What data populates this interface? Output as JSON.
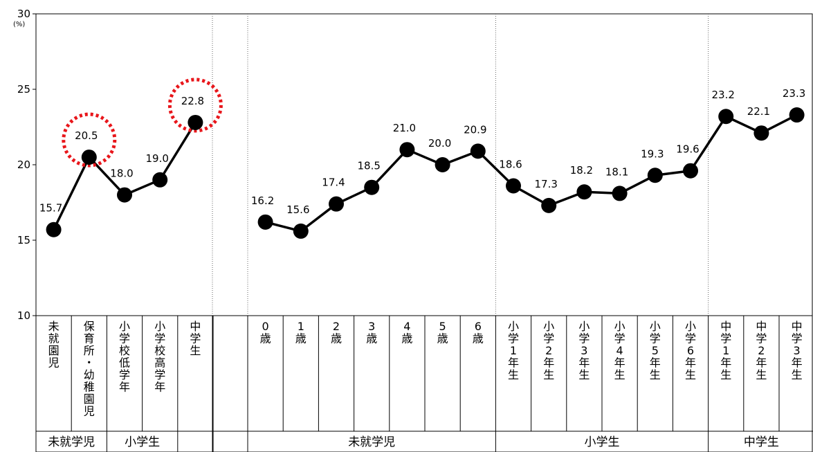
{
  "chart_data": {
    "type": "line",
    "y_unit": "(%)",
    "ylim": [
      10,
      30
    ],
    "yticks": [
      "10",
      "15",
      "20",
      "25",
      "30"
    ],
    "grid": false,
    "panels": [
      {
        "categories": [
          "未就園児",
          "保育所・幼稚園児",
          "小学校低学年",
          "小学校高学年",
          "中学生",
          ""
        ],
        "values": [
          15.7,
          20.5,
          18.0,
          19.0,
          22.8,
          null
        ],
        "labels": [
          "15.7",
          "20.5",
          "18.0",
          "19.0",
          "22.8",
          ""
        ],
        "highlighted": [
          1,
          4
        ],
        "groups": [
          {
            "label": "未就学児",
            "span": 2
          },
          {
            "label": "小学生",
            "span": 2
          },
          {
            "label": "",
            "span": 1
          },
          {
            "label": "",
            "span": 1
          }
        ]
      },
      {
        "categories": [
          "0歳",
          "1歳",
          "2歳",
          "3歳",
          "4歳",
          "5歳",
          "6歳",
          "小学1年生",
          "小学2年生",
          "小学3年生",
          "小学4年生",
          "小学5年生",
          "小学6年生",
          "中学1年生",
          "中学2年生",
          "中学3年生"
        ],
        "values": [
          16.2,
          15.6,
          17.4,
          18.5,
          21.0,
          20.0,
          20.9,
          18.6,
          17.3,
          18.2,
          18.1,
          19.3,
          19.6,
          23.2,
          22.1,
          23.3
        ],
        "labels": [
          "16.2",
          "15.6",
          "17.4",
          "18.5",
          "21.0",
          "20.0",
          "20.9",
          "18.6",
          "17.3",
          "18.2",
          "18.1",
          "19.3",
          "19.6",
          "23.2",
          "22.1",
          "23.3"
        ],
        "groups": [
          {
            "label": "未就学児",
            "span": 7
          },
          {
            "label": "小学生",
            "span": 6
          },
          {
            "label": "中学生",
            "span": 3
          }
        ]
      }
    ]
  }
}
